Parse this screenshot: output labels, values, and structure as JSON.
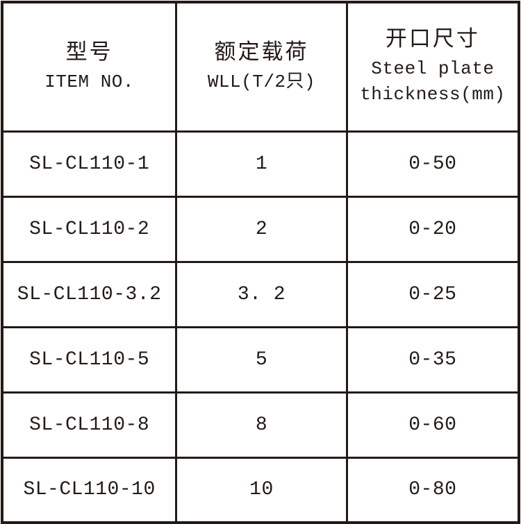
{
  "colors": {
    "background": "#ffffff",
    "border": "#231a16",
    "text": "#231a16"
  },
  "table": {
    "header": {
      "col1": {
        "zh": "型号",
        "en": "ITEM NO."
      },
      "col2": {
        "zh": "额定载荷",
        "en": "WLL(T/2只)"
      },
      "col3": {
        "zh": "开口尺寸",
        "en1": "Steel plate",
        "en2": "thickness(mm)"
      }
    },
    "rows": [
      {
        "item_no": "SL-CL110-1",
        "wll": "1",
        "thickness": "0-50"
      },
      {
        "item_no": "SL-CL110-2",
        "wll": "2",
        "thickness": "0-20"
      },
      {
        "item_no": "SL-CL110-3.2",
        "wll": "3. 2",
        "thickness": "0-25"
      },
      {
        "item_no": "SL-CL110-5",
        "wll": "5",
        "thickness": "0-35"
      },
      {
        "item_no": "SL-CL110-8",
        "wll": "8",
        "thickness": "0-60"
      },
      {
        "item_no": "SL-CL110-10",
        "wll": "10",
        "thickness": "0-80"
      }
    ]
  }
}
